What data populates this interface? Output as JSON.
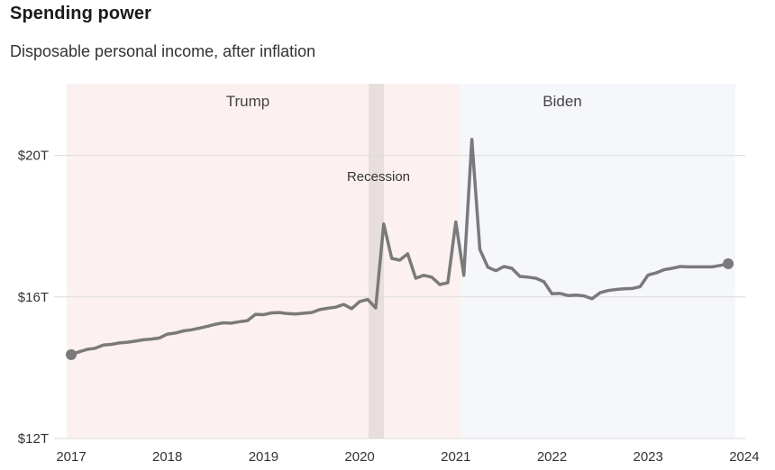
{
  "chart_data": {
    "type": "line",
    "title": "Spending power",
    "subtitle": "Disposable personal income, after inflation",
    "xlabel": "",
    "ylabel": "",
    "ylim": [
      12,
      21.5
    ],
    "xlim": [
      2017,
      2024
    ],
    "grid": "horizontal",
    "y_ticks": [
      {
        "value": 12,
        "label": "$12T"
      },
      {
        "value": 16,
        "label": "$16T"
      },
      {
        "value": 20,
        "label": "$20T"
      }
    ],
    "x_ticks": [
      {
        "value": 2017,
        "label": "2017"
      },
      {
        "value": 2018,
        "label": "2018"
      },
      {
        "value": 2019,
        "label": "2019"
      },
      {
        "value": 2020,
        "label": "2020"
      },
      {
        "value": 2021,
        "label": "2021"
      },
      {
        "value": 2022,
        "label": "2022"
      },
      {
        "value": 2023,
        "label": "2023"
      },
      {
        "value": 2024,
        "label": "2024"
      }
    ],
    "bands": [
      {
        "name": "Trump",
        "start": 2017,
        "end": 2021.05,
        "color": "#fcf1f0"
      },
      {
        "name": "Biden",
        "start": 2021.05,
        "end": 2023.9,
        "color": "#f6f7fb"
      }
    ],
    "annotations": [
      {
        "label": "Recession",
        "start": 2020.09,
        "end": 2020.25,
        "color": "#e8dedd"
      }
    ],
    "series": [
      {
        "name": "Disposable personal income, after inflation ($T)",
        "color": "#7a7a7a",
        "start": 2017.0,
        "step_months": 1,
        "values": [
          14.37,
          14.45,
          14.52,
          14.55,
          14.64,
          14.66,
          14.7,
          14.72,
          14.75,
          14.79,
          14.81,
          14.84,
          14.95,
          14.98,
          15.04,
          15.07,
          15.12,
          15.17,
          15.23,
          15.27,
          15.26,
          15.3,
          15.33,
          15.51,
          15.5,
          15.55,
          15.56,
          15.53,
          15.52,
          15.54,
          15.56,
          15.64,
          15.68,
          15.71,
          15.79,
          15.67,
          15.87,
          15.93,
          15.69,
          18.06,
          17.09,
          17.04,
          17.22,
          16.53,
          16.61,
          16.56,
          16.35,
          16.4,
          18.12,
          16.61,
          20.45,
          17.34,
          16.84,
          16.74,
          16.86,
          16.81,
          16.58,
          16.56,
          16.53,
          16.43,
          16.09,
          16.1,
          16.04,
          16.05,
          16.03,
          15.95,
          16.12,
          16.18,
          16.21,
          16.23,
          16.24,
          16.29,
          16.62,
          16.68,
          16.77,
          16.81,
          16.86,
          16.85,
          16.85,
          16.85,
          16.85,
          16.89,
          16.94
        ]
      }
    ]
  }
}
